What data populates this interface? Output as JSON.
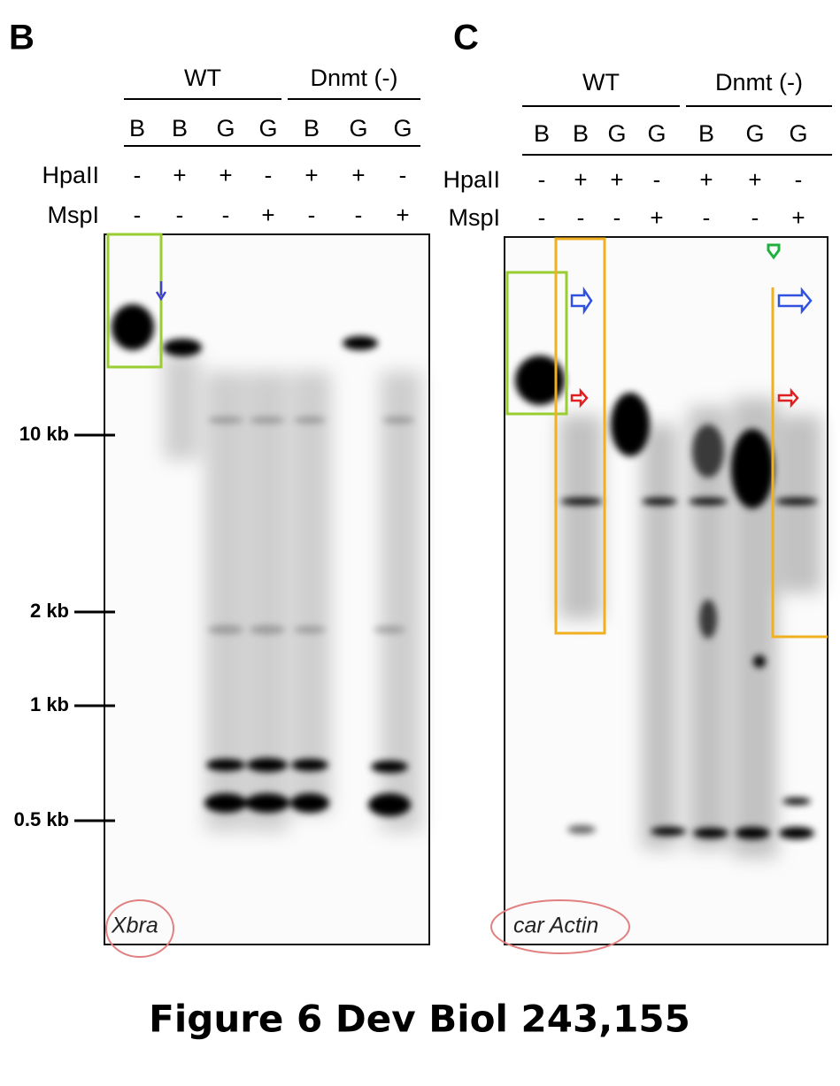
{
  "caption": "Figure 6 Dev Biol 243,155",
  "panels": [
    {
      "label": "B",
      "groups": [
        "WT",
        "Dnmt (-)"
      ],
      "lanes": [
        "B",
        "B",
        "G",
        "G",
        "B",
        "G",
        "G"
      ],
      "rows": [
        {
          "name": "HpaII",
          "marks": [
            "-",
            "+",
            "+",
            "-",
            "+",
            "+",
            "-"
          ]
        },
        {
          "name": "MspI",
          "marks": [
            "-",
            "-",
            "-",
            "+",
            "-",
            "-",
            "+"
          ]
        }
      ],
      "markers": [
        "10 kb",
        "2 kb",
        "1 kb",
        "0.5 kb"
      ],
      "probe": "Xbra"
    },
    {
      "label": "C",
      "groups": [
        "WT",
        "Dnmt (-)"
      ],
      "lanes": [
        "B",
        "B",
        "G",
        "G",
        "B",
        "G",
        "G"
      ],
      "rows": [
        {
          "name": "HpaII",
          "marks": [
            "-",
            "+",
            "+",
            "-",
            "+",
            "+",
            "-"
          ]
        },
        {
          "name": "MspI",
          "marks": [
            "-",
            "-",
            "-",
            "+",
            "-",
            "-",
            "+"
          ]
        }
      ],
      "probe": "car Actin"
    }
  ]
}
